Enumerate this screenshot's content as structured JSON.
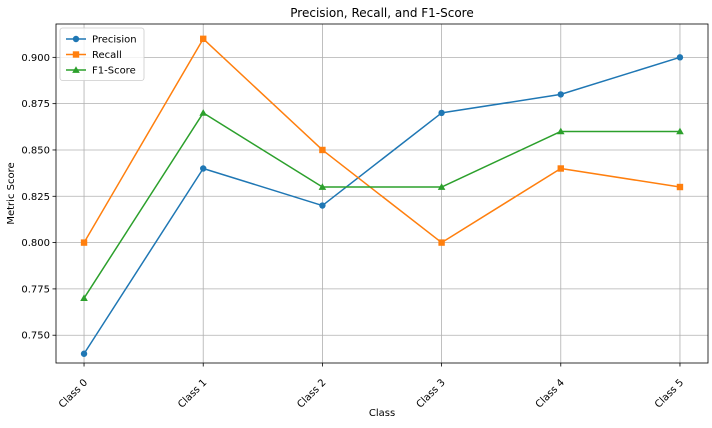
{
  "chart_data": {
    "type": "line",
    "title": "Precision, Recall, and F1-Score",
    "xlabel": "Class",
    "ylabel": "Metric Score",
    "categories": [
      "Class 0",
      "Class 1",
      "Class 2",
      "Class 3",
      "Class 4",
      "Class 5"
    ],
    "ylim": [
      0.735,
      0.918
    ],
    "yticks": [
      "0.750",
      "0.775",
      "0.800",
      "0.825",
      "0.850",
      "0.875",
      "0.900"
    ],
    "grid": true,
    "legend_position": "top-left",
    "series": [
      {
        "name": "Precision",
        "color": "#1f77b4",
        "marker": "circle",
        "values": [
          0.74,
          0.84,
          0.82,
          0.87,
          0.88,
          0.9
        ]
      },
      {
        "name": "Recall",
        "color": "#ff7f0e",
        "marker": "square",
        "values": [
          0.8,
          0.91,
          0.85,
          0.8,
          0.84,
          0.83
        ]
      },
      {
        "name": "F1-Score",
        "color": "#2ca02c",
        "marker": "triangle",
        "values": [
          0.77,
          0.87,
          0.83,
          0.83,
          0.86,
          0.86
        ]
      }
    ]
  }
}
